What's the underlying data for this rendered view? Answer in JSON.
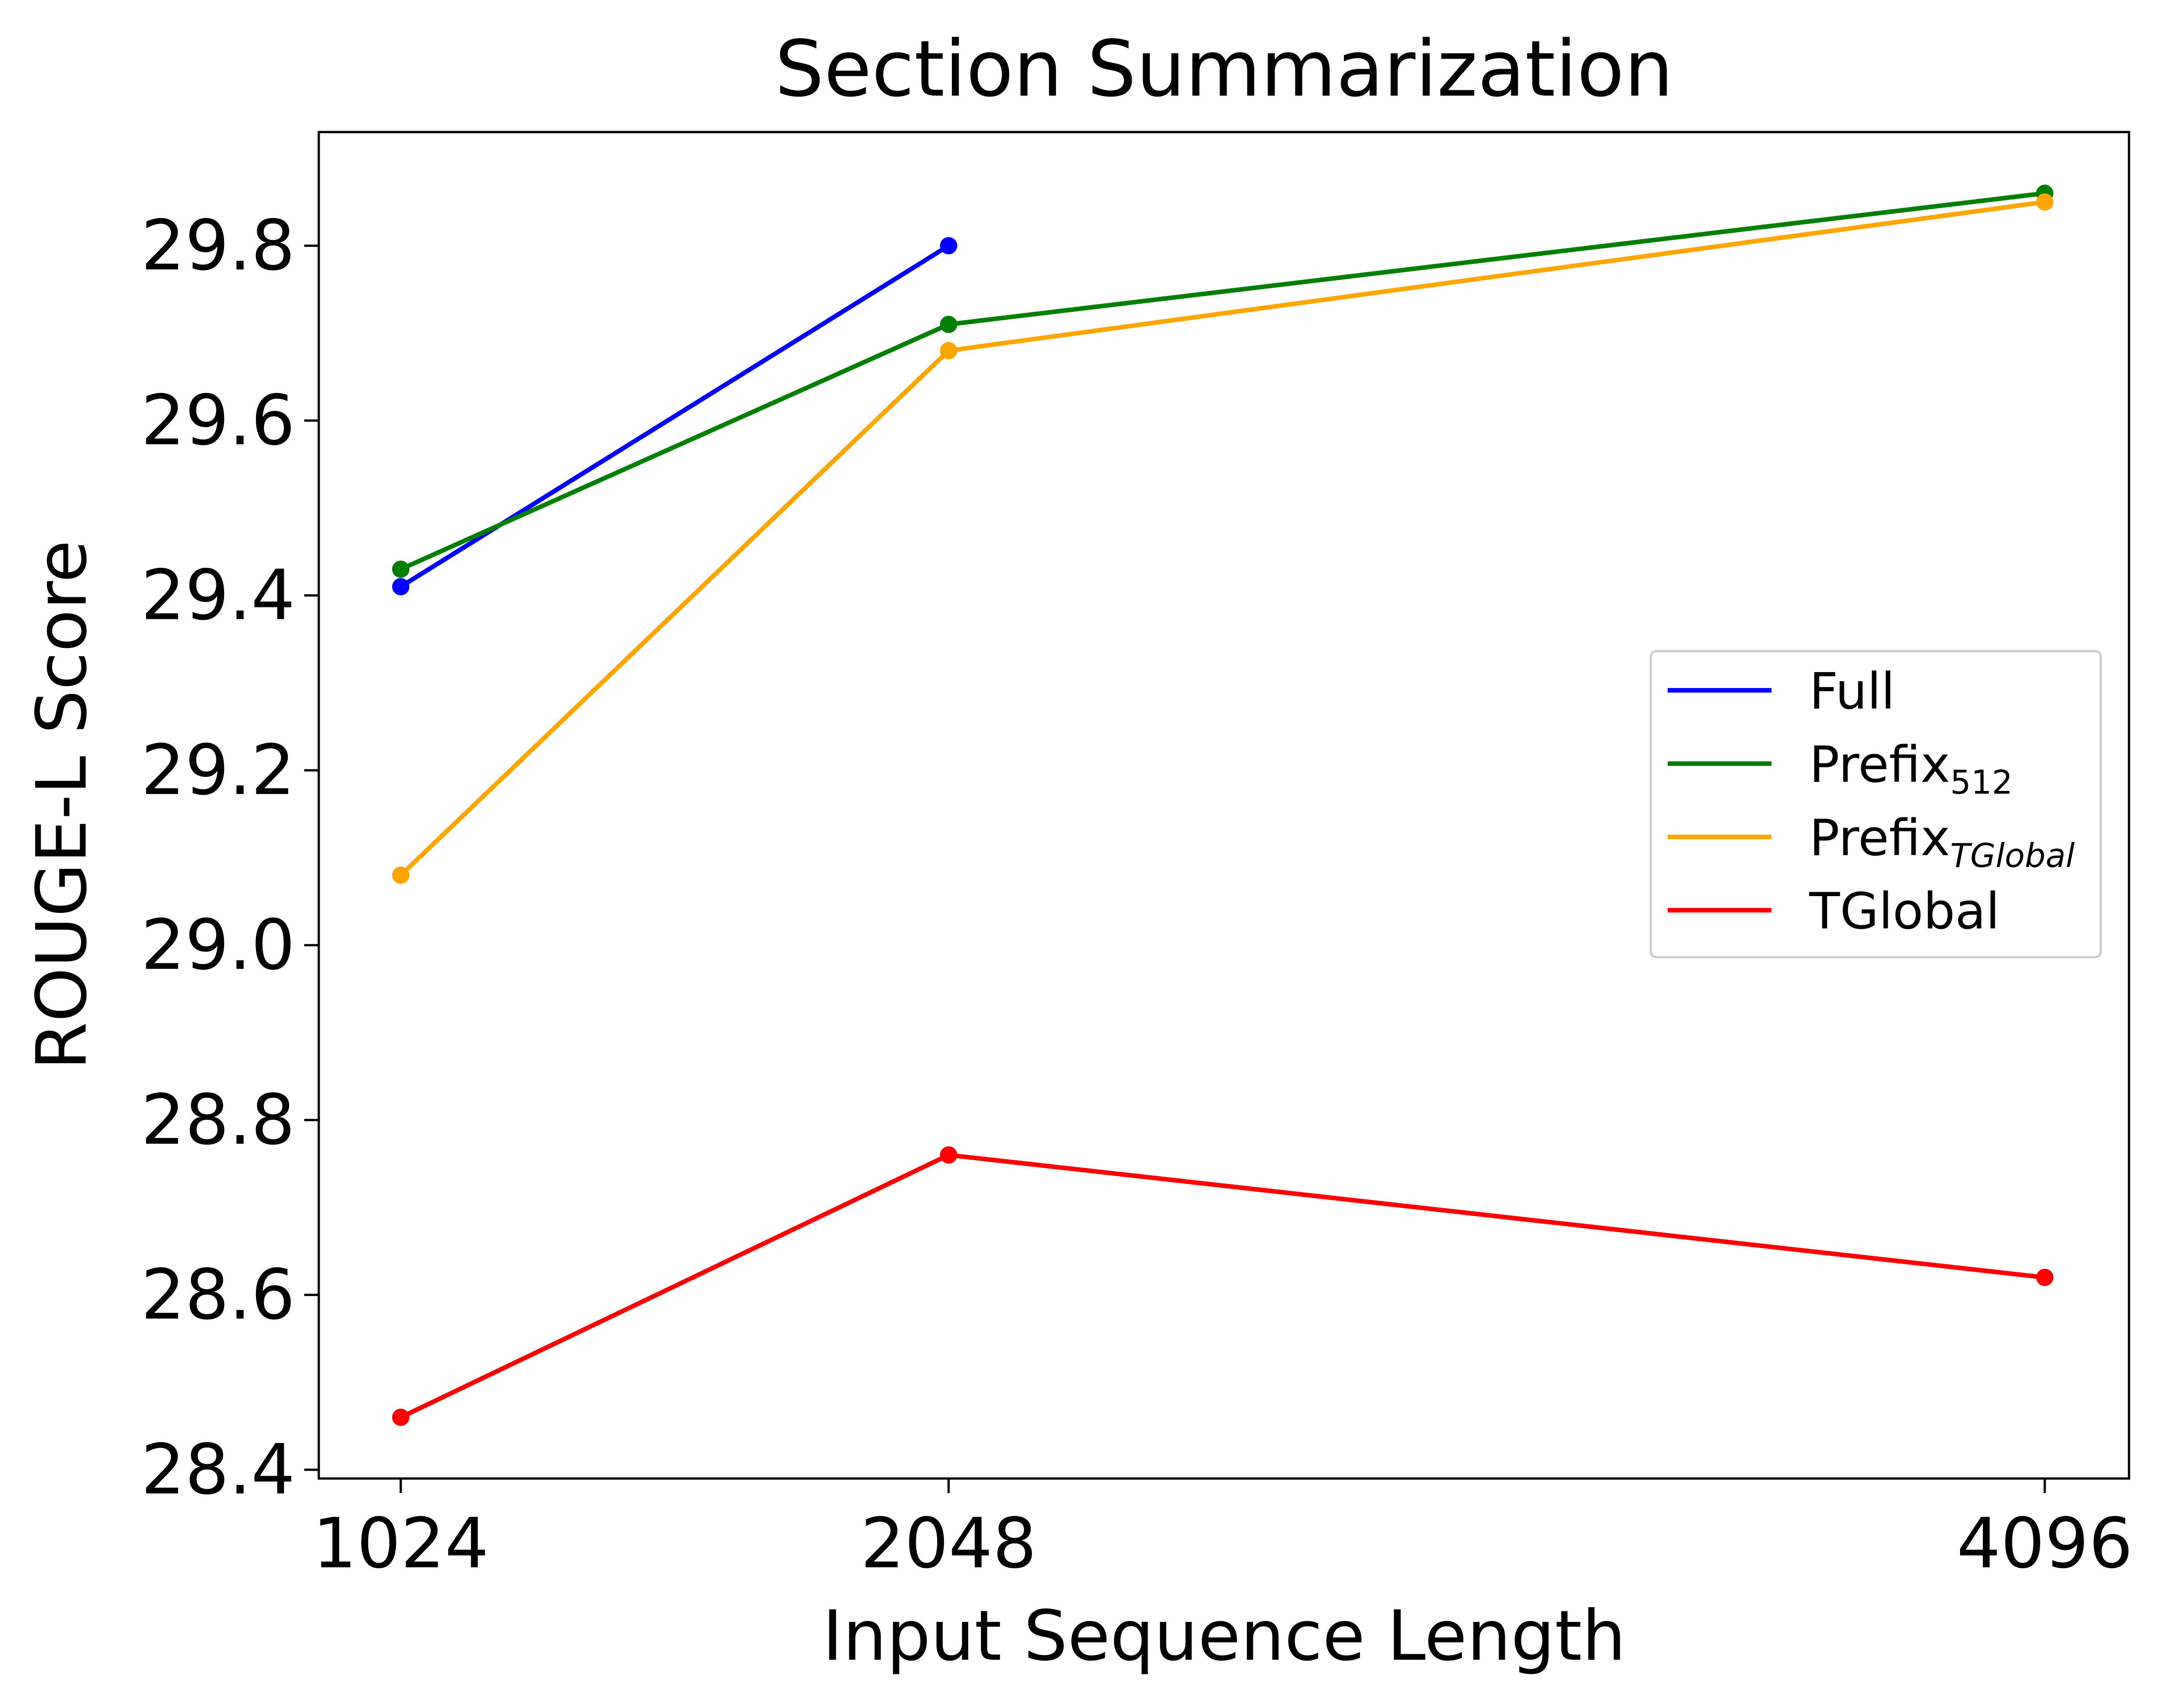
{
  "chart_data": {
    "type": "line",
    "title": "Section Summarization",
    "xlabel": "Input Sequence Length",
    "ylabel": "ROUGE-L Score",
    "x_ticks": [
      "1024",
      "2048",
      "4096"
    ],
    "y_ticks": [
      "28.4",
      "28.6",
      "28.8",
      "29.0",
      "29.2",
      "29.4",
      "29.6",
      "29.8"
    ],
    "ylim": [
      28.39,
      29.93
    ],
    "grid": false,
    "legend_position": "center-right",
    "series": [
      {
        "name": "Full",
        "name_base": "Full",
        "name_sub": "",
        "color": "#0000ff",
        "x": [
          1024,
          2048
        ],
        "values": [
          29.41,
          29.8
        ]
      },
      {
        "name": "Prefix512",
        "name_base": "Prefix",
        "name_sub": "512",
        "color": "#008000",
        "x": [
          1024,
          2048,
          4096
        ],
        "values": [
          29.43,
          29.71,
          29.86
        ]
      },
      {
        "name": "PrefixTGlobal",
        "name_base": "Prefix",
        "name_sub": "TGlobal",
        "color": "#ffa500",
        "x": [
          1024,
          2048,
          4096
        ],
        "values": [
          29.08,
          29.68,
          29.85
        ]
      },
      {
        "name": "TGlobal",
        "name_base": "TGlobal",
        "name_sub": "",
        "color": "#ff0000",
        "x": [
          1024,
          2048,
          4096
        ],
        "values": [
          28.46,
          28.76,
          28.62
        ]
      }
    ]
  }
}
